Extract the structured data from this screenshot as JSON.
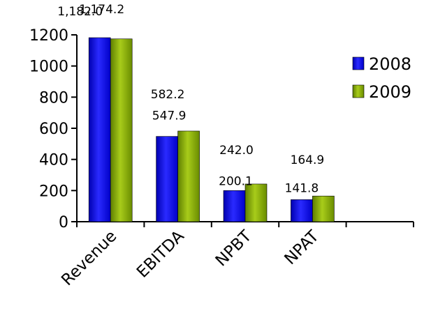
{
  "chart_data": {
    "type": "bar",
    "categories": [
      "Revenue",
      "EBITDA",
      "NPBT",
      "NPAT",
      ""
    ],
    "series": [
      {
        "name": "2008",
        "values": [
          1182.0,
          547.9,
          200.1,
          141.8,
          null
        ],
        "color": "#1010e0"
      },
      {
        "name": "2009",
        "values": [
          1174.2,
          582.2,
          242.0,
          164.9,
          null
        ],
        "color": "#8fb400"
      }
    ],
    "data_labels": [
      [
        "1,182.0",
        "547.9",
        "200.1",
        "141.8",
        ""
      ],
      [
        "1,174.2",
        "582.2",
        "242.0",
        "164.9",
        ""
      ]
    ],
    "yticks": [
      "0",
      "200",
      "400",
      "600",
      "800",
      "1000",
      "1200"
    ],
    "ylim": [
      0,
      1200
    ],
    "title": "",
    "xlabel": "",
    "ylabel": "",
    "legend": "right",
    "grid": false
  }
}
